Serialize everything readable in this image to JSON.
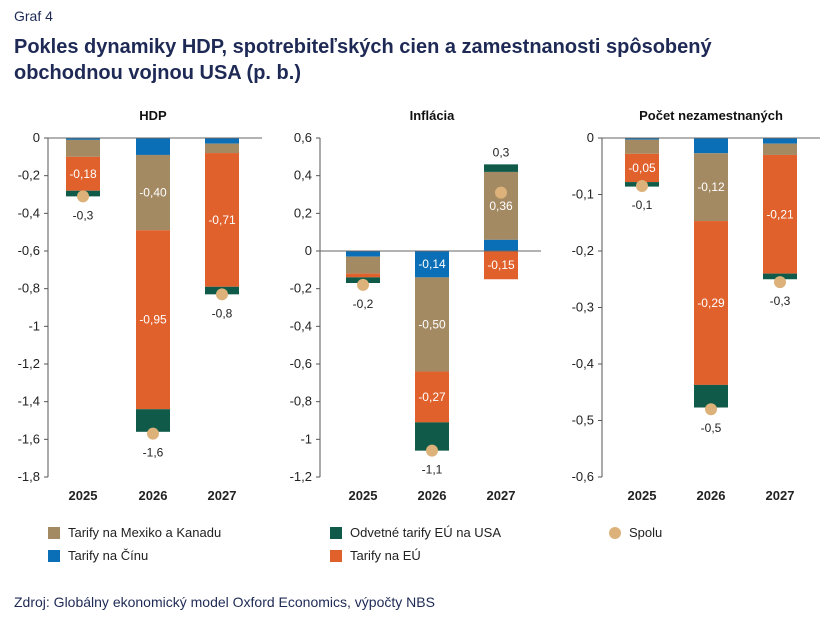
{
  "graf_label": "Graf 4",
  "title": "Pokles dynamiky HDP, spotrebiteľských cien a zamestnanosti spôsobený obchodnou vojnou USA (p. b.)",
  "source": "Zdroj: Globálny ekonomický model Oxford Economics, výpočty NBS",
  "colors": {
    "mexico_kanada": "#a48a63",
    "odvetne_eu": "#0f5a48",
    "cina": "#0a6fb7",
    "eu": "#e0612c",
    "spolu": "#dcb27a"
  },
  "legend": [
    {
      "key": "mexico_kanada",
      "label": "Tarify na Mexiko a Kanadu",
      "shape": "square"
    },
    {
      "key": "odvetne_eu",
      "label": "Odvetné tarify EÚ na USA",
      "shape": "square"
    },
    {
      "key": "spolu",
      "label": "Spolu",
      "shape": "circle"
    },
    {
      "key": "cina",
      "label": "Tarify na Čínu",
      "shape": "square"
    },
    {
      "key": "eu",
      "label": "Tarify na EÚ",
      "shape": "square"
    }
  ],
  "chart_data": [
    {
      "type": "bar",
      "stacked": true,
      "title": "HDP",
      "categories": [
        "2025",
        "2026",
        "2027"
      ],
      "ylim": [
        -1.8,
        0
      ],
      "yticks": [
        0,
        -0.2,
        -0.4,
        -0.6,
        -0.8,
        -1,
        -1.2,
        -1.4,
        -1.6,
        -1.8
      ],
      "ytick_labels": [
        "0",
        "-0,2",
        "-0,4",
        "-0,6",
        "-0,8",
        "-1",
        "-1,2",
        "-1,4",
        "-1,6",
        "-1,8"
      ],
      "series": [
        {
          "key": "cina",
          "values": [
            -0.01,
            -0.09,
            -0.03
          ],
          "labels": [
            "",
            "",
            ""
          ]
        },
        {
          "key": "mexico_kanada",
          "values": [
            -0.09,
            -0.4,
            -0.05
          ],
          "labels": [
            "",
            "-0,40",
            ""
          ]
        },
        {
          "key": "eu",
          "values": [
            -0.18,
            -0.95,
            -0.71
          ],
          "labels": [
            "-0,18",
            "-0,95",
            "-0,71"
          ]
        },
        {
          "key": "odvetne_eu",
          "values": [
            -0.03,
            -0.12,
            -0.04
          ],
          "labels": [
            "",
            "",
            ""
          ]
        }
      ],
      "totals": [
        -0.31,
        -1.57,
        -0.83
      ],
      "total_labels": [
        "-0,3",
        "-1,6",
        "-0,8"
      ],
      "total_label_pos": [
        "below",
        "below",
        "below"
      ]
    },
    {
      "type": "bar",
      "stacked": true,
      "title": "Inflácia",
      "categories": [
        "2025",
        "2026",
        "2027"
      ],
      "ylim": [
        -1.2,
        0.6
      ],
      "yticks": [
        0.6,
        0.4,
        0.2,
        0,
        -0.2,
        -0.4,
        -0.6,
        -0.8,
        -1,
        -1.2
      ],
      "ytick_labels": [
        "0,6",
        "0,4",
        "0,2",
        "0",
        "-0,2",
        "-0,4",
        "-0,6",
        "-0,8",
        "-1",
        "-1,2"
      ],
      "series": [
        {
          "key": "cina",
          "values": [
            -0.03,
            -0.14,
            0.06
          ],
          "labels": [
            "",
            "-0,14",
            ""
          ]
        },
        {
          "key": "mexico_kanada",
          "values": [
            -0.09,
            -0.5,
            0.36
          ],
          "labels": [
            "",
            "-0,50",
            "0,36"
          ]
        },
        {
          "key": "eu",
          "values": [
            -0.02,
            -0.27,
            -0.15
          ],
          "labels": [
            "",
            "-0,27",
            "-0,15"
          ]
        },
        {
          "key": "odvetne_eu",
          "values": [
            -0.03,
            -0.15,
            0.04
          ],
          "labels": [
            "",
            "",
            ""
          ]
        }
      ],
      "totals": [
        -0.18,
        -1.06,
        0.31
      ],
      "total_labels": [
        "-0,2",
        "-1,1",
        "0,3"
      ],
      "total_label_pos": [
        "below",
        "below",
        "above"
      ]
    },
    {
      "type": "bar",
      "stacked": true,
      "title": "Počet nezamestnaných",
      "categories": [
        "2025",
        "2026",
        "2027"
      ],
      "ylim": [
        -0.6,
        0
      ],
      "yticks": [
        0,
        -0.1,
        -0.2,
        -0.3,
        -0.4,
        -0.5,
        -0.6
      ],
      "ytick_labels": [
        "0",
        "-0,1",
        "-0,2",
        "-0,3",
        "-0,4",
        "-0,5",
        "-0,6"
      ],
      "series": [
        {
          "key": "cina",
          "values": [
            -0.003,
            -0.027,
            -0.01
          ],
          "labels": [
            "",
            "",
            ""
          ]
        },
        {
          "key": "mexico_kanada",
          "values": [
            -0.025,
            -0.12,
            -0.02
          ],
          "labels": [
            "",
            "-0,12",
            ""
          ]
        },
        {
          "key": "eu",
          "values": [
            -0.05,
            -0.29,
            -0.21
          ],
          "labels": [
            "-0,05",
            "-0,29",
            "-0,21"
          ]
        },
        {
          "key": "odvetne_eu",
          "values": [
            -0.008,
            -0.04,
            -0.01
          ],
          "labels": [
            "",
            "",
            ""
          ]
        }
      ],
      "totals": [
        -0.085,
        -0.48,
        -0.255
      ],
      "total_labels": [
        "-0,1",
        "-0,5",
        "-0,3"
      ],
      "total_label_pos": [
        "below",
        "below",
        "below"
      ]
    }
  ]
}
